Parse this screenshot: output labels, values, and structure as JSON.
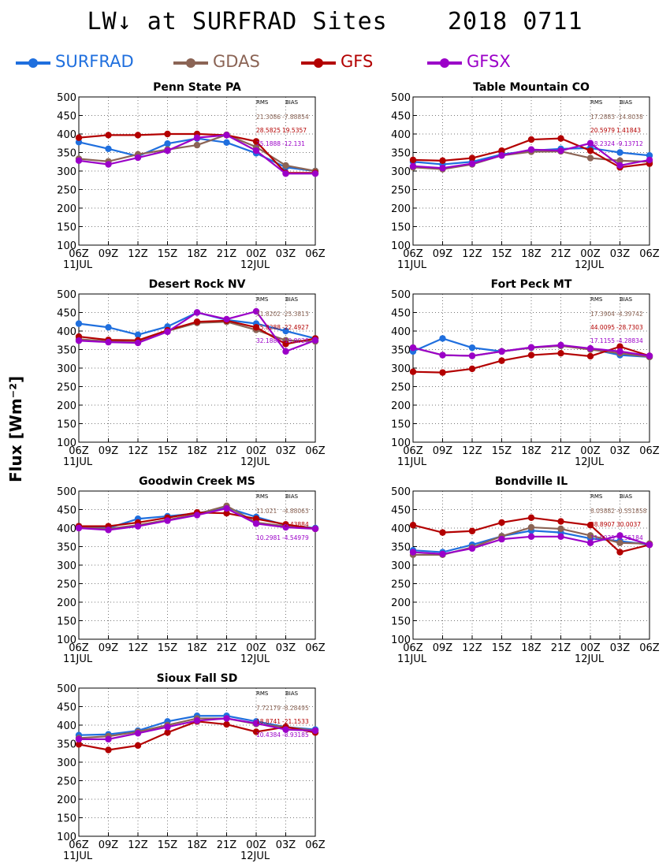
{
  "title_prefix": "LW",
  "title_arrow": "↓",
  "title_rest": " at SURFRAD Sites",
  "date": "2018 0711",
  "ylabel": "Flux [Wm⁻²]",
  "legend": [
    {
      "name": "SURFRAD",
      "color": "#1f6fde"
    },
    {
      "name": "GDAS",
      "color": "#8b6455"
    },
    {
      "name": "GFS",
      "color": "#b30000"
    },
    {
      "name": "GFSX",
      "color": "#9b00c8"
    }
  ],
  "chart_data": [
    {
      "type": "line",
      "title": "Penn State PA",
      "categories": [
        "06Z",
        "09Z",
        "12Z",
        "15Z",
        "18Z",
        "21Z",
        "00Z",
        "03Z",
        "06Z"
      ],
      "date_labels": [
        "11JUL",
        "12JUL"
      ],
      "ylim": [
        100,
        500
      ],
      "yticks": [
        100,
        150,
        200,
        250,
        300,
        350,
        400,
        450,
        500
      ],
      "grid": true,
      "stats_header": [
        "RMS",
        "BIAS"
      ],
      "stats": [
        [
          "21.3086",
          "-7.88854"
        ],
        [
          "28.5825",
          "19.5357"
        ],
        [
          "25.1888",
          "-12.131"
        ]
      ],
      "series": [
        {
          "name": "SURFRAD",
          "values": [
            378,
            360,
            340,
            374,
            388,
            377,
            348,
            310,
            300
          ]
        },
        {
          "name": "GDAS",
          "values": [
            333,
            326,
            345,
            358,
            370,
            398,
            365,
            315,
            300
          ]
        },
        {
          "name": "GFS",
          "values": [
            390,
            397,
            397,
            400,
            400,
            397,
            380,
            295,
            295
          ]
        },
        {
          "name": "GFSX",
          "values": [
            328,
            318,
            336,
            355,
            390,
            397,
            355,
            293,
            293
          ]
        }
      ]
    },
    {
      "type": "line",
      "title": "Table Mountain CO",
      "categories": [
        "06Z",
        "09Z",
        "12Z",
        "15Z",
        "18Z",
        "21Z",
        "00Z",
        "03Z",
        "06Z"
      ],
      "date_labels": [
        "11JUL",
        "12JUL"
      ],
      "ylim": [
        100,
        500
      ],
      "yticks": [
        100,
        150,
        200,
        250,
        300,
        350,
        400,
        450,
        500
      ],
      "grid": true,
      "stats_header": [
        "RMS",
        "BIAS"
      ],
      "stats": [
        [
          "17.2883",
          "-14.8038"
        ],
        [
          "20.5979",
          "1.41843"
        ],
        [
          "18.2324",
          "-9.13712"
        ]
      ],
      "series": [
        {
          "name": "SURFRAD",
          "values": [
            325,
            318,
            325,
            345,
            355,
            360,
            362,
            350,
            342
          ]
        },
        {
          "name": "GDAS",
          "values": [
            310,
            305,
            318,
            342,
            352,
            353,
            335,
            328,
            325
          ]
        },
        {
          "name": "GFS",
          "values": [
            330,
            328,
            335,
            355,
            385,
            388,
            355,
            310,
            320
          ]
        },
        {
          "name": "GFSX",
          "values": [
            313,
            308,
            320,
            342,
            358,
            355,
            375,
            315,
            330
          ]
        }
      ]
    },
    {
      "type": "line",
      "title": "Desert Rock NV",
      "categories": [
        "06Z",
        "09Z",
        "12Z",
        "15Z",
        "18Z",
        "21Z",
        "00Z",
        "03Z",
        "06Z"
      ],
      "date_labels": [
        "11JUL",
        "12JUL"
      ],
      "ylim": [
        100,
        500
      ],
      "yticks": [
        100,
        150,
        200,
        250,
        300,
        350,
        400,
        450,
        500
      ],
      "grid": true,
      "stats_header": [
        "RMS",
        "BIAS"
      ],
      "stats": [
        [
          "31.8202",
          "-25.3813"
        ],
        [
          "35.8288",
          "-22.4927"
        ],
        [
          "32.1888",
          "-19.8028"
        ]
      ],
      "series": [
        {
          "name": "SURFRAD",
          "values": [
            420,
            410,
            390,
            412,
            450,
            430,
            420,
            400,
            380
          ]
        },
        {
          "name": "GDAS",
          "values": [
            378,
            372,
            370,
            400,
            422,
            425,
            403,
            375,
            372
          ]
        },
        {
          "name": "GFS",
          "values": [
            385,
            376,
            375,
            402,
            425,
            428,
            410,
            365,
            380
          ]
        },
        {
          "name": "GFSX",
          "values": [
            374,
            370,
            368,
            398,
            450,
            432,
            453,
            345,
            375
          ]
        }
      ]
    },
    {
      "type": "line",
      "title": "Fort Peck MT",
      "categories": [
        "06Z",
        "09Z",
        "12Z",
        "15Z",
        "18Z",
        "21Z",
        "00Z",
        "03Z",
        "06Z"
      ],
      "date_labels": [
        "11JUL",
        "12JUL"
      ],
      "ylim": [
        100,
        500
      ],
      "yticks": [
        100,
        150,
        200,
        250,
        300,
        350,
        400,
        450,
        500
      ],
      "grid": true,
      "stats_header": [
        "RMS",
        "BIAS"
      ],
      "stats": [
        [
          "17.3904",
          "-4.39742"
        ],
        [
          "44.0095",
          "-28.7303"
        ],
        [
          "17.1155",
          "-4.28834"
        ]
      ],
      "series": [
        {
          "name": "SURFRAD",
          "values": [
            345,
            380,
            355,
            345,
            355,
            360,
            352,
            335,
            330
          ]
        },
        {
          "name": "GDAS",
          "values": [
            355,
            335,
            333,
            345,
            355,
            360,
            350,
            340,
            330
          ]
        },
        {
          "name": "GFS",
          "values": [
            290,
            288,
            298,
            320,
            335,
            340,
            332,
            358,
            333
          ]
        },
        {
          "name": "GFSX",
          "values": [
            355,
            335,
            333,
            345,
            356,
            362,
            353,
            345,
            333
          ]
        }
      ]
    },
    {
      "type": "line",
      "title": "Goodwin Creek MS",
      "categories": [
        "06Z",
        "09Z",
        "12Z",
        "15Z",
        "18Z",
        "21Z",
        "00Z",
        "03Z",
        "06Z"
      ],
      "date_labels": [
        "11JUL",
        "12JUL"
      ],
      "ylim": [
        100,
        500
      ],
      "yticks": [
        100,
        150,
        200,
        250,
        300,
        350,
        400,
        450,
        500
      ],
      "grid": true,
      "stats_header": [
        "RMS",
        "BIAS"
      ],
      "stats": [
        [
          "11.021",
          "-4.88063"
        ],
        [
          "",
          "-2.43884"
        ],
        [
          "10.2981",
          "-4.54979"
        ]
      ],
      "series": [
        {
          "name": "SURFRAD",
          "values": [
            405,
            400,
            425,
            432,
            440,
            455,
            430,
            408,
            400
          ]
        },
        {
          "name": "GDAS",
          "values": [
            402,
            398,
            408,
            422,
            438,
            460,
            415,
            405,
            398
          ]
        },
        {
          "name": "GFS",
          "values": [
            405,
            405,
            415,
            428,
            442,
            440,
            425,
            410,
            398
          ]
        },
        {
          "name": "GFSX",
          "values": [
            400,
            395,
            405,
            420,
            435,
            453,
            412,
            402,
            398
          ]
        }
      ]
    },
    {
      "type": "line",
      "title": "Bondville IL",
      "categories": [
        "06Z",
        "09Z",
        "12Z",
        "15Z",
        "18Z",
        "21Z",
        "00Z",
        "03Z",
        "06Z"
      ],
      "date_labels": [
        "11JUL",
        "12JUL"
      ],
      "ylim": [
        100,
        500
      ],
      "yticks": [
        100,
        150,
        200,
        250,
        300,
        350,
        400,
        450,
        500
      ],
      "grid": true,
      "stats_header": [
        "RMS",
        "BIAS"
      ],
      "stats": [
        [
          "8.05882",
          "-0.551858"
        ],
        [
          "38.8907",
          "30.0037"
        ],
        [
          "11.0035",
          "-5.55184"
        ]
      ],
      "series": [
        {
          "name": "SURFRAD",
          "values": [
            340,
            335,
            355,
            378,
            393,
            388,
            372,
            365,
            355
          ]
        },
        {
          "name": "GDAS",
          "values": [
            328,
            328,
            348,
            378,
            402,
            398,
            380,
            360,
            358
          ]
        },
        {
          "name": "GFS",
          "values": [
            408,
            388,
            392,
            415,
            428,
            418,
            408,
            335,
            355
          ]
        },
        {
          "name": "GFSX",
          "values": [
            335,
            330,
            345,
            370,
            377,
            377,
            360,
            380,
            355
          ]
        }
      ]
    },
    {
      "type": "line",
      "title": "Sioux Fall SD",
      "categories": [
        "06Z",
        "09Z",
        "12Z",
        "15Z",
        "18Z",
        "21Z",
        "00Z",
        "03Z",
        "06Z"
      ],
      "date_labels": [
        "11JUL",
        "12JUL"
      ],
      "ylim": [
        100,
        500
      ],
      "yticks": [
        100,
        150,
        200,
        250,
        300,
        350,
        400,
        450,
        500
      ],
      "grid": true,
      "stats_header": [
        "RMS",
        "BIAS"
      ],
      "stats": [
        [
          "7.72179",
          "-8.28495"
        ],
        [
          "18.8741",
          "-21.1533"
        ],
        [
          "10.4384",
          "-8.93185"
        ]
      ],
      "series": [
        {
          "name": "SURFRAD",
          "values": [
            373,
            375,
            385,
            410,
            425,
            425,
            410,
            395,
            388
          ]
        },
        {
          "name": "GDAS",
          "values": [
            365,
            370,
            382,
            400,
            418,
            418,
            403,
            395,
            385
          ]
        },
        {
          "name": "GFS",
          "values": [
            348,
            333,
            345,
            380,
            410,
            402,
            382,
            395,
            380
          ]
        },
        {
          "name": "GFSX",
          "values": [
            362,
            362,
            378,
            395,
            412,
            418,
            405,
            388,
            385
          ]
        }
      ]
    }
  ]
}
